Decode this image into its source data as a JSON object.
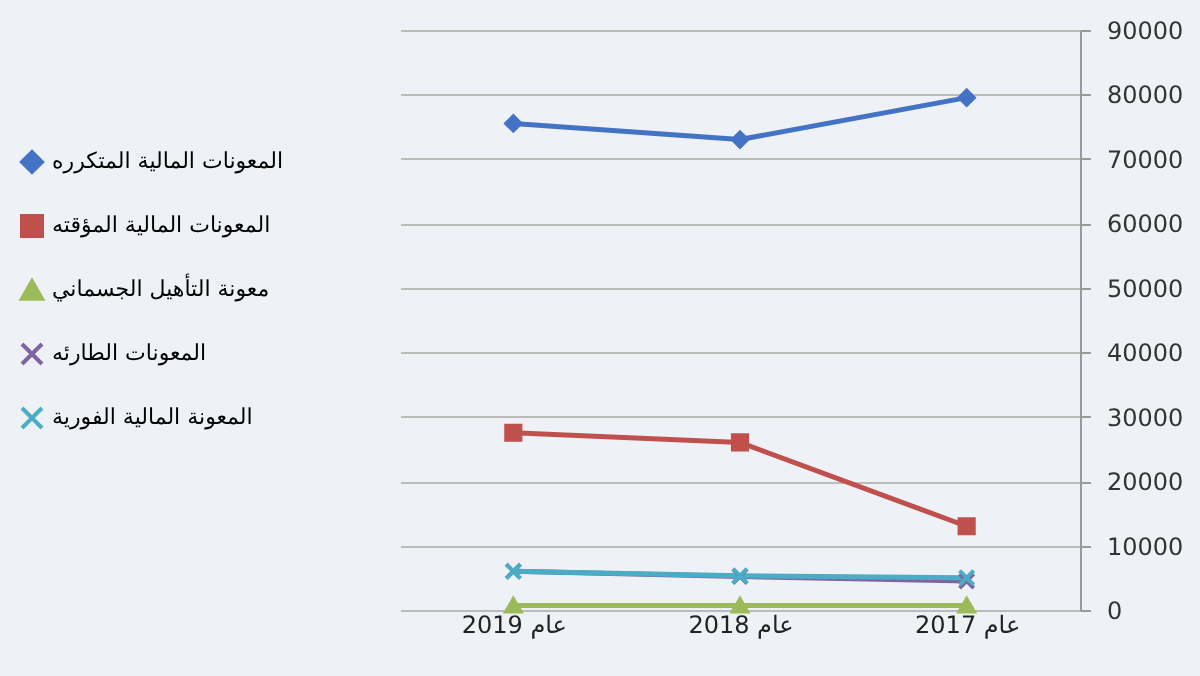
{
  "chart_data": {
    "type": "line",
    "categories": [
      "عام 2019",
      "عام 2018",
      "عام 2017"
    ],
    "series": [
      {
        "name": "المعونات المالية المتكرره",
        "color": "#4472c4",
        "marker": "diamond",
        "values": [
          75500,
          73000,
          79500
        ]
      },
      {
        "name": "المعونات المالية المؤقته",
        "color": "#c0504d",
        "marker": "square",
        "values": [
          27500,
          26000,
          13000
        ]
      },
      {
        "name": "معونة التأهيل الجسماني",
        "color": "#9bbb59",
        "marker": "triangle",
        "values": [
          700,
          700,
          700
        ]
      },
      {
        "name": "المعونات الطارئه",
        "color": "#8064a2",
        "marker": "cross",
        "values": [
          6000,
          5200,
          4500
        ]
      },
      {
        "name": "المعونة المالية الفورية",
        "color": "#4bacc6",
        "marker": "cross",
        "values": [
          6000,
          5300,
          5000
        ]
      }
    ],
    "ylim": [
      0,
      90000
    ],
    "yticks": [
      0,
      10000,
      20000,
      30000,
      40000,
      50000,
      60000,
      70000,
      80000,
      90000
    ],
    "grid": "y",
    "legend": "left"
  }
}
